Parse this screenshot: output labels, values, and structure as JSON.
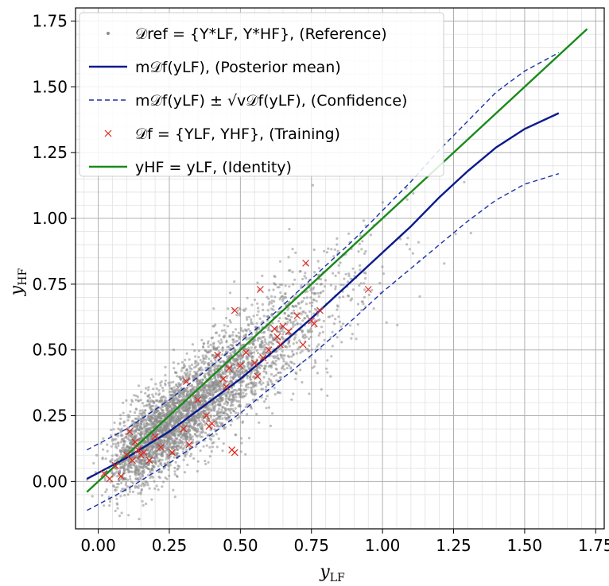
{
  "chart_data": {
    "type": "scatter",
    "xlabel": "y_LF",
    "ylabel": "y_HF",
    "xlim": [
      -0.08,
      1.78
    ],
    "ylim": [
      -0.18,
      1.8
    ],
    "grid": true,
    "legend_position": "top-left",
    "x_ticks": [
      "0.00",
      "0.25",
      "0.50",
      "0.75",
      "1.00",
      "1.25",
      "1.50",
      "1.75"
    ],
    "y_ticks": [
      "0.00",
      "0.25",
      "0.50",
      "0.75",
      "1.00",
      "1.25",
      "1.50",
      "1.75"
    ],
    "colors": {
      "reference": "#8c8c8c",
      "posterior_mean": "#0a1a8c",
      "confidence": "#1a2fa8",
      "training": "#e0281e",
      "identity": "#1a8a1a"
    },
    "legend": [
      {
        "key": "reference",
        "label": "𝒟ref = {Y*LF, Y*HF}, (Reference)"
      },
      {
        "key": "posterior_mean",
        "label": "m𝒟f(yLF), (Posterior mean)"
      },
      {
        "key": "confidence",
        "label": "m𝒟f(yLF) ± √v𝒟f(yLF), (Confidence)"
      },
      {
        "key": "training",
        "label": "𝒟f = {YLF, YHF}, (Training)"
      },
      {
        "key": "identity",
        "label": "yHF = yLF, (Identity)"
      }
    ],
    "series": [
      {
        "key": "posterior_mean",
        "x": [
          -0.04,
          0.1,
          0.25,
          0.4,
          0.5,
          0.6,
          0.75,
          0.9,
          1.0,
          1.1,
          1.2,
          1.3,
          1.4,
          1.5,
          1.62
        ],
        "y": [
          0.01,
          0.09,
          0.19,
          0.31,
          0.39,
          0.48,
          0.62,
          0.77,
          0.87,
          0.97,
          1.08,
          1.18,
          1.27,
          1.34,
          1.4
        ]
      },
      {
        "key": "confidence_upper",
        "x": [
          -0.04,
          0.1,
          0.25,
          0.4,
          0.5,
          0.6,
          0.75,
          0.9,
          1.0,
          1.1,
          1.2,
          1.3,
          1.4,
          1.5,
          1.62
        ],
        "y": [
          0.12,
          0.2,
          0.31,
          0.44,
          0.53,
          0.62,
          0.77,
          0.92,
          1.03,
          1.14,
          1.26,
          1.37,
          1.48,
          1.56,
          1.63
        ]
      },
      {
        "key": "confidence_lower",
        "x": [
          -0.04,
          0.1,
          0.25,
          0.4,
          0.5,
          0.6,
          0.75,
          0.9,
          1.0,
          1.1,
          1.2,
          1.3,
          1.4,
          1.5,
          1.62
        ],
        "y": [
          -0.11,
          -0.03,
          0.07,
          0.18,
          0.26,
          0.35,
          0.48,
          0.62,
          0.72,
          0.81,
          0.9,
          0.99,
          1.07,
          1.13,
          1.17
        ]
      },
      {
        "key": "identity",
        "x": [
          -0.04,
          1.72
        ],
        "y": [
          -0.04,
          1.72
        ]
      }
    ],
    "training_points": {
      "x": [
        0.02,
        0.04,
        0.06,
        0.08,
        0.1,
        0.11,
        0.12,
        0.13,
        0.14,
        0.15,
        0.16,
        0.18,
        0.2,
        0.22,
        0.26,
        0.3,
        0.31,
        0.32,
        0.35,
        0.38,
        0.39,
        0.4,
        0.42,
        0.44,
        0.45,
        0.46,
        0.47,
        0.48,
        0.48,
        0.5,
        0.52,
        0.55,
        0.56,
        0.57,
        0.58,
        0.6,
        0.62,
        0.63,
        0.64,
        0.65,
        0.67,
        0.7,
        0.72,
        0.73,
        0.75,
        0.76,
        0.78,
        0.95
      ],
      "y": [
        0.03,
        0.01,
        0.06,
        0.02,
        0.1,
        0.19,
        0.08,
        0.15,
        0.12,
        0.1,
        0.11,
        0.08,
        0.17,
        0.13,
        0.11,
        0.2,
        0.38,
        0.14,
        0.31,
        0.25,
        0.21,
        0.22,
        0.48,
        0.39,
        0.36,
        0.43,
        0.12,
        0.65,
        0.11,
        0.44,
        0.49,
        0.45,
        0.4,
        0.73,
        0.47,
        0.5,
        0.58,
        0.55,
        0.52,
        0.59,
        0.57,
        0.63,
        0.52,
        0.83,
        0.61,
        0.6,
        0.65,
        0.73
      ]
    }
  }
}
